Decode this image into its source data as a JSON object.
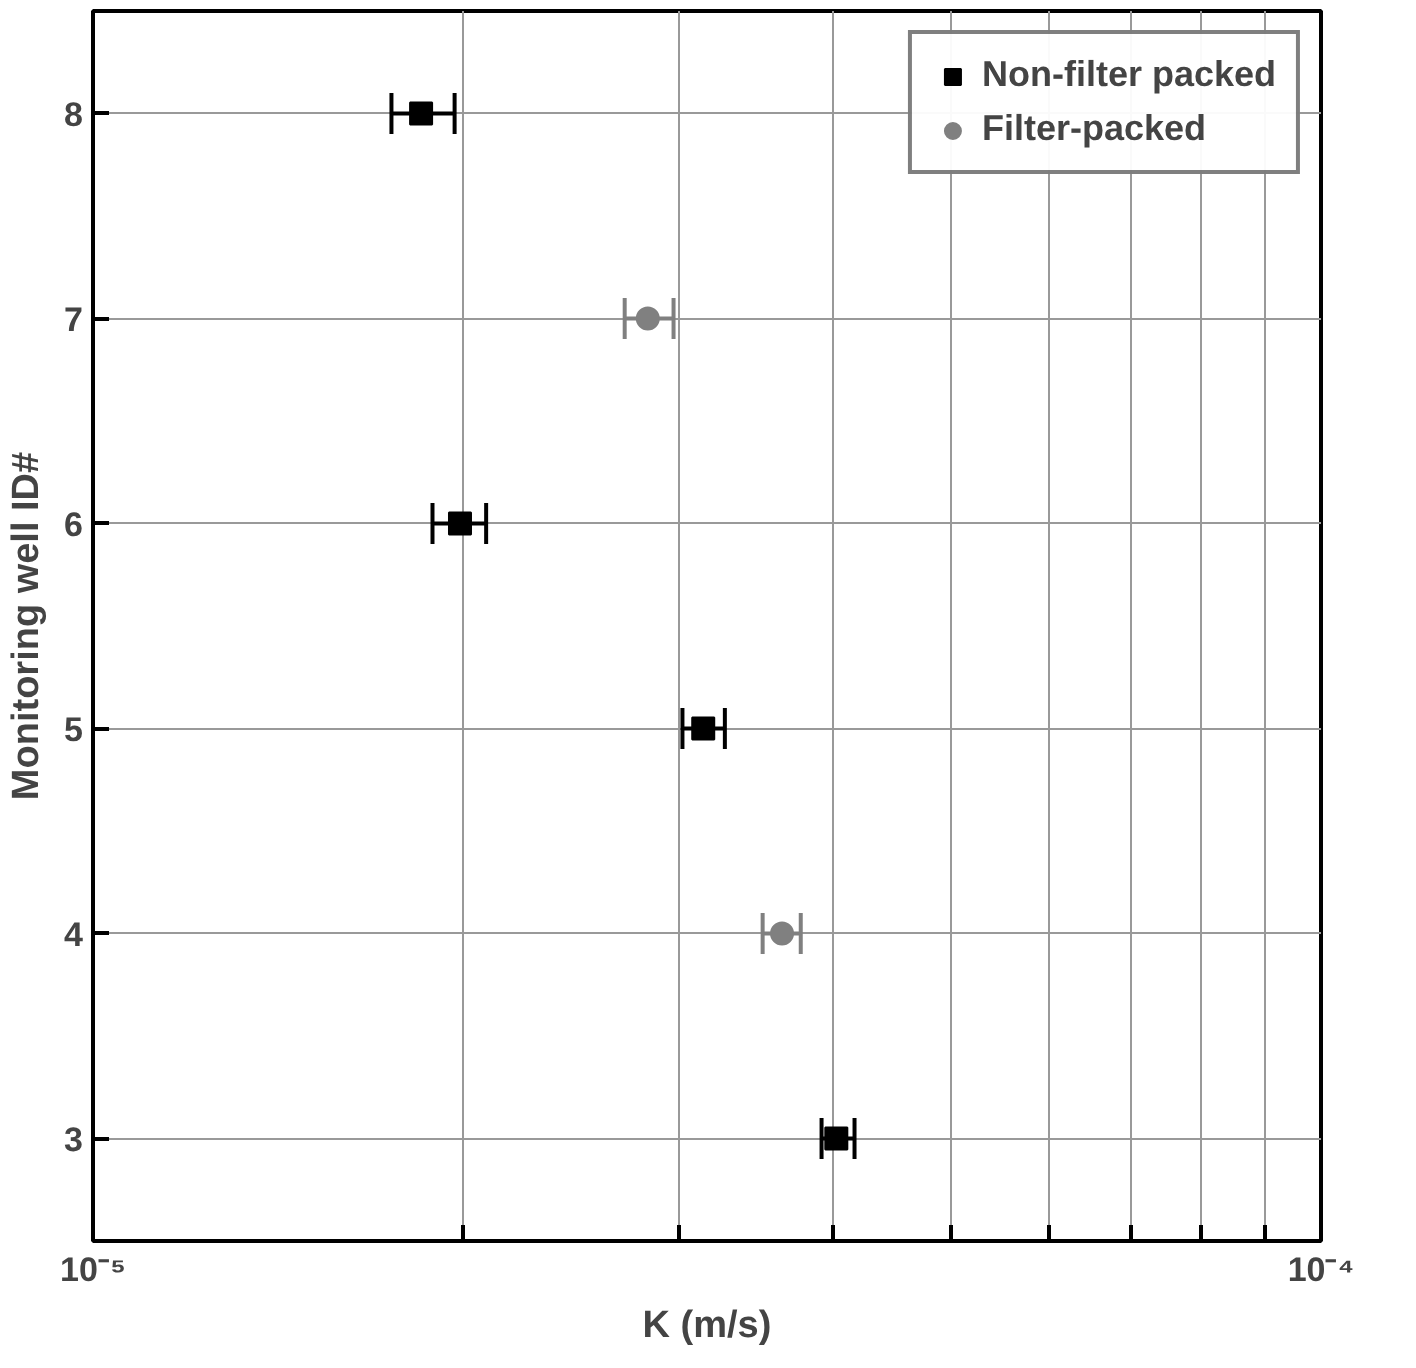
{
  "chart_data": {
    "type": "scatter",
    "xlabel": "K (m/s)",
    "ylabel": "Monitoring well ID#",
    "log": "x",
    "grid": true,
    "legend": "top right",
    "xlim": [
      1e-05,
      0.0001
    ],
    "xticks": [
      {
        "value": 1e-05,
        "label": "10⁻⁵"
      },
      {
        "value": 2e-05,
        "label": null
      },
      {
        "value": 3e-05,
        "label": null
      },
      {
        "value": 4e-05,
        "label": null
      },
      {
        "value": 5e-05,
        "label": null
      },
      {
        "value": 6e-05,
        "label": null
      },
      {
        "value": 7e-05,
        "label": null
      },
      {
        "value": 8e-05,
        "label": null
      },
      {
        "value": 9e-05,
        "label": null
      },
      {
        "value": 0.0001,
        "label": "10⁻⁴"
      }
    ],
    "ylim": [
      2.5,
      8.5
    ],
    "yticks": [
      3,
      4,
      5,
      6,
      7,
      8
    ],
    "series": [
      {
        "name": "Non-filter packed",
        "color": "#000000",
        "marker": "square",
        "x": [
          1.85e-05,
          1.99e-05,
          3.14e-05,
          4.03e-05
        ],
        "values": [
          8,
          6,
          5,
          3
        ],
        "xerrors": [
          [
            1.75e-05,
            1.97e-05
          ],
          [
            1.89e-05,
            2.09e-05
          ],
          [
            3.02e-05,
            3.27e-05
          ],
          [
            3.92e-05,
            4.17e-05
          ]
        ]
      },
      {
        "name": "Filter-packed",
        "color": "#808080",
        "marker": "circle",
        "x": [
          2.83e-05,
          3.64e-05
        ],
        "values": [
          7,
          4
        ],
        "xerrors": [
          [
            2.71e-05,
            2.97e-05
          ],
          [
            3.51e-05,
            3.77e-05
          ]
        ]
      }
    ]
  }
}
